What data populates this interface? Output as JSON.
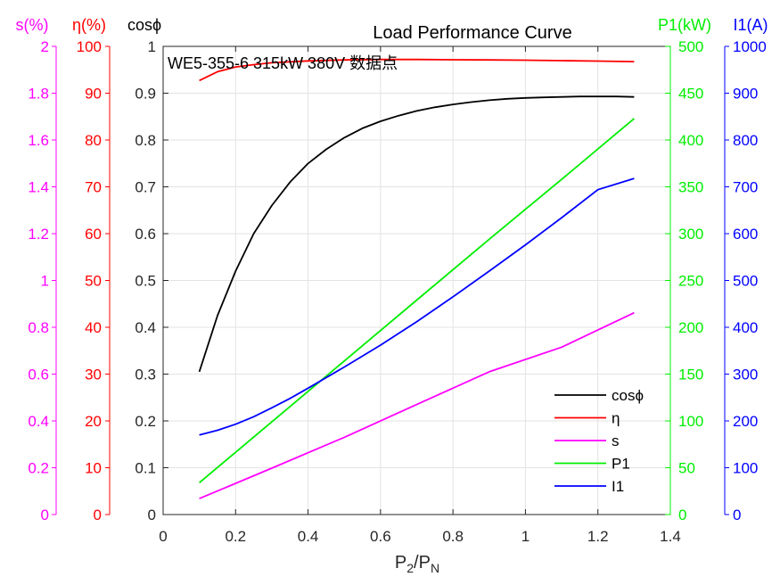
{
  "chart_data": {
    "type": "line",
    "title": "Load Performance Curve",
    "annotation": "WE5-355-6 315kW 380V 数据点",
    "xlabel": {
      "main": "P",
      "sub1": "2",
      "slash": "/P",
      "sub2": "N"
    },
    "xlim": [
      0,
      1.4
    ],
    "xticks": [
      0,
      0.2,
      0.4,
      0.6,
      0.8,
      1,
      1.2,
      1.4
    ],
    "grid": true,
    "legend_position": "bottom-right",
    "axes": [
      {
        "id": "s",
        "label": "s(%)",
        "color": "#ff00ff",
        "ylim": [
          0,
          2
        ],
        "ticks": [
          0,
          0.2,
          0.4,
          0.6,
          0.8,
          1,
          1.2,
          1.4,
          1.6,
          1.8,
          2
        ]
      },
      {
        "id": "eta",
        "label": "η(%)",
        "color": "#ff0000",
        "ylim": [
          0,
          100
        ],
        "ticks": [
          0,
          10,
          20,
          30,
          40,
          50,
          60,
          70,
          80,
          90,
          100
        ]
      },
      {
        "id": "cos",
        "label": "cosϕ",
        "color": "#000000",
        "ylim": [
          0,
          1
        ],
        "ticks": [
          0,
          0.1,
          0.2,
          0.3,
          0.4,
          0.5,
          0.6,
          0.7,
          0.8,
          0.9,
          1
        ]
      },
      {
        "id": "p1",
        "label": "P1(kW)",
        "color": "#00ee00",
        "ylim": [
          0,
          500
        ],
        "ticks": [
          0,
          50,
          100,
          150,
          200,
          250,
          300,
          350,
          400,
          450,
          500
        ]
      },
      {
        "id": "i1",
        "label": "I1(A)",
        "color": "#0000ff",
        "ylim": [
          0,
          1000
        ],
        "ticks": [
          0,
          100,
          200,
          300,
          400,
          500,
          600,
          700,
          800,
          900,
          1000
        ]
      }
    ],
    "series": [
      {
        "name": "cosϕ",
        "axis": "cos",
        "color": "#000000",
        "x": [
          0.1,
          0.15,
          0.2,
          0.25,
          0.3,
          0.35,
          0.4,
          0.45,
          0.5,
          0.55,
          0.6,
          0.65,
          0.7,
          0.75,
          0.8,
          0.85,
          0.9,
          0.95,
          1.0,
          1.05,
          1.1,
          1.15,
          1.2,
          1.25,
          1.3
        ],
        "y": [
          0.305,
          0.425,
          0.52,
          0.6,
          0.66,
          0.71,
          0.75,
          0.78,
          0.805,
          0.825,
          0.84,
          0.852,
          0.862,
          0.87,
          0.876,
          0.881,
          0.885,
          0.888,
          0.89,
          0.891,
          0.892,
          0.893,
          0.893,
          0.893,
          0.892
        ]
      },
      {
        "name": "η",
        "axis": "eta",
        "color": "#ff0000",
        "x": [
          0.1,
          0.15,
          0.2,
          0.25,
          0.3,
          0.4,
          0.5,
          0.6,
          0.7,
          0.8,
          0.9,
          1.0,
          1.1,
          1.2,
          1.3
        ],
        "y": [
          92.7,
          94.6,
          95.6,
          96.1,
          96.5,
          96.9,
          97.1,
          97.2,
          97.2,
          97.15,
          97.1,
          97.05,
          96.95,
          96.85,
          96.75
        ]
      },
      {
        "name": "s",
        "axis": "s",
        "color": "#ff00ff",
        "x": [
          0.1,
          0.3,
          0.5,
          0.7,
          0.9,
          1.1,
          1.3
        ],
        "y": [
          0.068,
          0.198,
          0.33,
          0.47,
          0.61,
          0.715,
          0.862
        ]
      },
      {
        "name": "P1",
        "axis": "p1",
        "color": "#00ee00",
        "x": [
          0.1,
          0.3,
          0.5,
          0.7,
          0.9,
          1.1,
          1.3
        ],
        "y": [
          34,
          99,
          164,
          229,
          294,
          358,
          423
        ]
      },
      {
        "name": "I1",
        "axis": "i1",
        "color": "#0000ff",
        "x": [
          0.1,
          0.15,
          0.2,
          0.25,
          0.3,
          0.35,
          0.4,
          0.5,
          0.6,
          0.7,
          0.8,
          0.9,
          1.0,
          1.1,
          1.2,
          1.3
        ],
        "y": [
          170,
          180,
          193,
          209,
          228,
          248,
          270,
          315,
          362,
          412,
          465,
          520,
          576,
          634,
          694,
          718
        ]
      }
    ]
  }
}
